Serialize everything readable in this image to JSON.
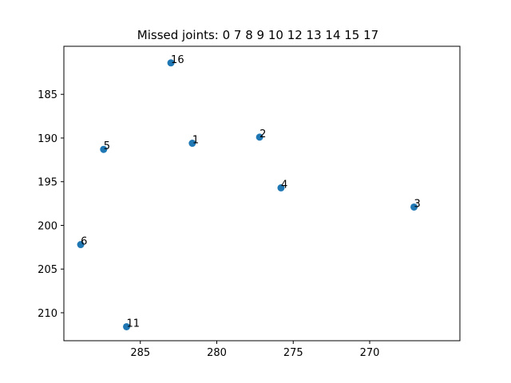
{
  "chart_data": {
    "type": "scatter",
    "title": "Missed joints: 0  7  8  9  10  12  13  14  15  17",
    "xlabel": "",
    "ylabel": "",
    "xlim": [
      290.0,
      264.1
    ],
    "ylim": [
      213.2,
      179.5
    ],
    "x_inverted": true,
    "y_inverted": true,
    "grid": false,
    "xticks": [
      285,
      280,
      275,
      270
    ],
    "yticks": [
      185,
      190,
      195,
      200,
      205,
      210
    ],
    "point_color": "#1f77b4",
    "points": [
      {
        "label": "16",
        "x": 283.0,
        "y": 181.4
      },
      {
        "label": "1",
        "x": 281.6,
        "y": 190.6
      },
      {
        "label": "2",
        "x": 277.2,
        "y": 189.9
      },
      {
        "label": "5",
        "x": 287.4,
        "y": 191.3
      },
      {
        "label": "4",
        "x": 275.8,
        "y": 195.7
      },
      {
        "label": "3",
        "x": 267.1,
        "y": 197.9
      },
      {
        "label": "6",
        "x": 288.9,
        "y": 202.2
      },
      {
        "label": "11",
        "x": 285.9,
        "y": 211.6
      }
    ]
  }
}
